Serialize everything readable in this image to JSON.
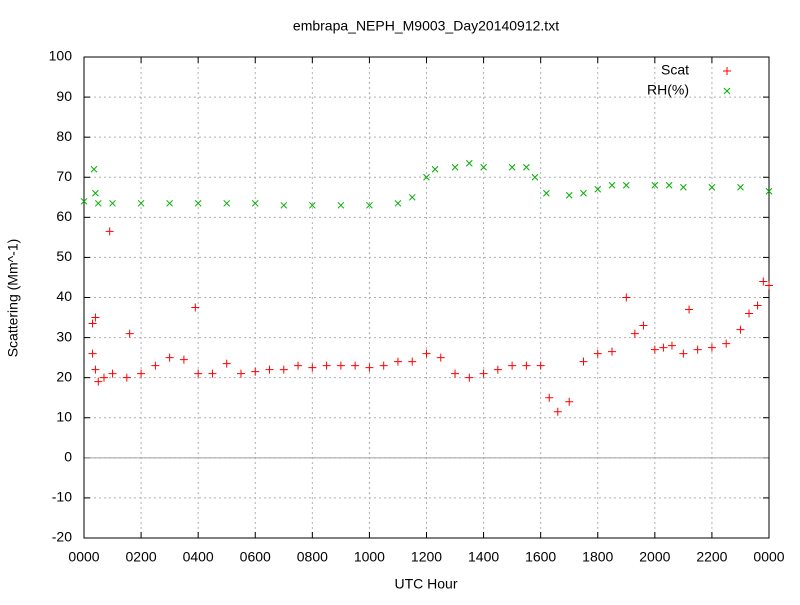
{
  "chart_data": {
    "type": "scatter",
    "title": "embrapa_NEPH_M9003_Day20140912.txt",
    "xlabel": "UTC Hour",
    "ylabel": "Scattering (Mm^-1)",
    "xlim": [
      0,
      24
    ],
    "ylim": [
      -20,
      100
    ],
    "xticks": [
      {
        "value": 0,
        "label": "0000"
      },
      {
        "value": 2,
        "label": "0200"
      },
      {
        "value": 4,
        "label": "0400"
      },
      {
        "value": 6,
        "label": "0600"
      },
      {
        "value": 8,
        "label": "0800"
      },
      {
        "value": 10,
        "label": "1000"
      },
      {
        "value": 12,
        "label": "1200"
      },
      {
        "value": 14,
        "label": "1400"
      },
      {
        "value": 16,
        "label": "1600"
      },
      {
        "value": 18,
        "label": "1800"
      },
      {
        "value": 20,
        "label": "2000"
      },
      {
        "value": 22,
        "label": "2200"
      },
      {
        "value": 24,
        "label": "0000"
      }
    ],
    "yticks": [
      -20,
      -10,
      0,
      10,
      20,
      30,
      40,
      50,
      60,
      70,
      80,
      90,
      100
    ],
    "grid": true,
    "zero_line": true,
    "legend": "top-right",
    "series": [
      {
        "name": "Scat",
        "color": "#ff0000",
        "marker": "plus",
        "x": [
          0.3,
          0.3,
          0.4,
          0.4,
          0.5,
          0.7,
          0.9,
          1,
          1.5,
          1.6,
          2,
          2.5,
          3,
          3.5,
          3.9,
          4,
          4.5,
          5,
          5.5,
          6,
          6.5,
          7,
          7.5,
          8,
          8.5,
          9,
          9.5,
          10,
          10.5,
          11,
          11.5,
          12,
          12.5,
          13,
          13.5,
          14,
          14.5,
          15,
          15.5,
          16,
          16.3,
          16.6,
          17,
          17.5,
          18,
          18.5,
          19,
          19.3,
          19.6,
          20,
          20.3,
          20.6,
          21,
          21.2,
          21.5,
          22,
          22.5,
          23,
          23.3,
          23.6,
          23.8,
          24
        ],
        "values": [
          26,
          33.5,
          22,
          35,
          19,
          20,
          56.5,
          21,
          20,
          31,
          21,
          23,
          25,
          24.5,
          37.5,
          21,
          21,
          23.5,
          21,
          21.5,
          22,
          22,
          23,
          22.5,
          23,
          23,
          23,
          22.5,
          23,
          24,
          24,
          26,
          25,
          21,
          20,
          21,
          22,
          23,
          23,
          23,
          15,
          11.5,
          14,
          24,
          26,
          26.5,
          40,
          31,
          33,
          27,
          27.5,
          28,
          26,
          37,
          27,
          27.5,
          28.5,
          32,
          36,
          38,
          44,
          43
        ]
      },
      {
        "name": "RH(%)",
        "color": "#00b000",
        "marker": "cross",
        "x": [
          0,
          0.35,
          0.4,
          0.5,
          1,
          2,
          3,
          4,
          5,
          6,
          7,
          8,
          9,
          10,
          11,
          11.5,
          12,
          12.3,
          13,
          13.5,
          14,
          15,
          15.5,
          15.8,
          16.2,
          17,
          17.5,
          18,
          18.5,
          19,
          20,
          20.5,
          21,
          22,
          23,
          24
        ],
        "values": [
          64,
          72,
          66,
          63.5,
          63.5,
          63.5,
          63.5,
          63.5,
          63.5,
          63.5,
          63,
          63,
          63,
          63,
          63.5,
          65,
          70,
          72,
          72.5,
          73.5,
          72.5,
          72.5,
          72.5,
          70,
          66,
          65.5,
          66,
          67,
          68,
          68,
          68,
          68,
          67.5,
          67.5,
          67.5,
          66.5
        ]
      }
    ]
  }
}
